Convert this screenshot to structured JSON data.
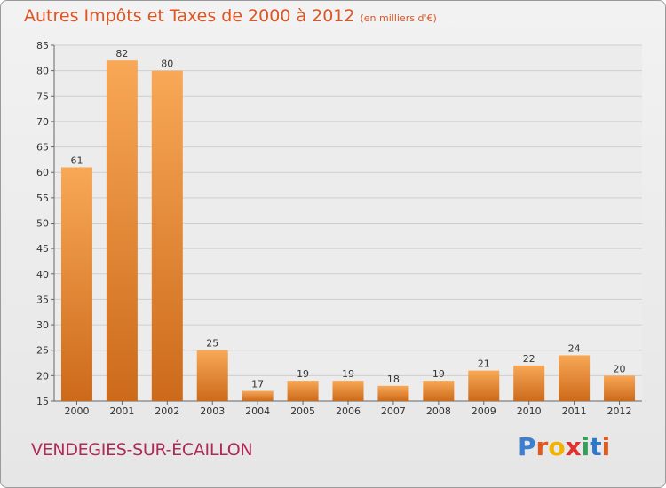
{
  "header": {
    "title": "Autres Impôts et Taxes de 2000 à 2012",
    "unit": "(en milliers d'€)"
  },
  "footer": {
    "town": "VENDEGIES-SUR-ÉCAILLON",
    "logo": [
      "P",
      "r",
      "o",
      "x",
      "i",
      "t",
      "i"
    ]
  },
  "colors": {
    "bar_light": "#f8a856",
    "bar_dark": "#cc6a1a",
    "title": "#de5522",
    "town": "#b02a56",
    "logo": [
      "#3a7fd0",
      "#e05a20",
      "#f2b300",
      "#e03030",
      "#33a05a",
      "#2f77c8",
      "#e05a20"
    ]
  },
  "chart_data": {
    "type": "bar",
    "title": "Autres Impôts et Taxes de 2000 à 2012",
    "subtitle": "(en milliers d'€)",
    "xlabel": "",
    "ylabel": "",
    "categories": [
      "2000",
      "2001",
      "2002",
      "2003",
      "2004",
      "2005",
      "2006",
      "2007",
      "2008",
      "2009",
      "2010",
      "2011",
      "2012"
    ],
    "values": [
      61,
      82,
      80,
      25,
      17,
      19,
      19,
      18,
      19,
      21,
      22,
      24,
      20
    ],
    "ylim": [
      15,
      85
    ],
    "yticks": [
      15,
      20,
      25,
      30,
      35,
      40,
      45,
      50,
      55,
      60,
      65,
      70,
      75,
      80,
      85
    ],
    "grid": true
  }
}
